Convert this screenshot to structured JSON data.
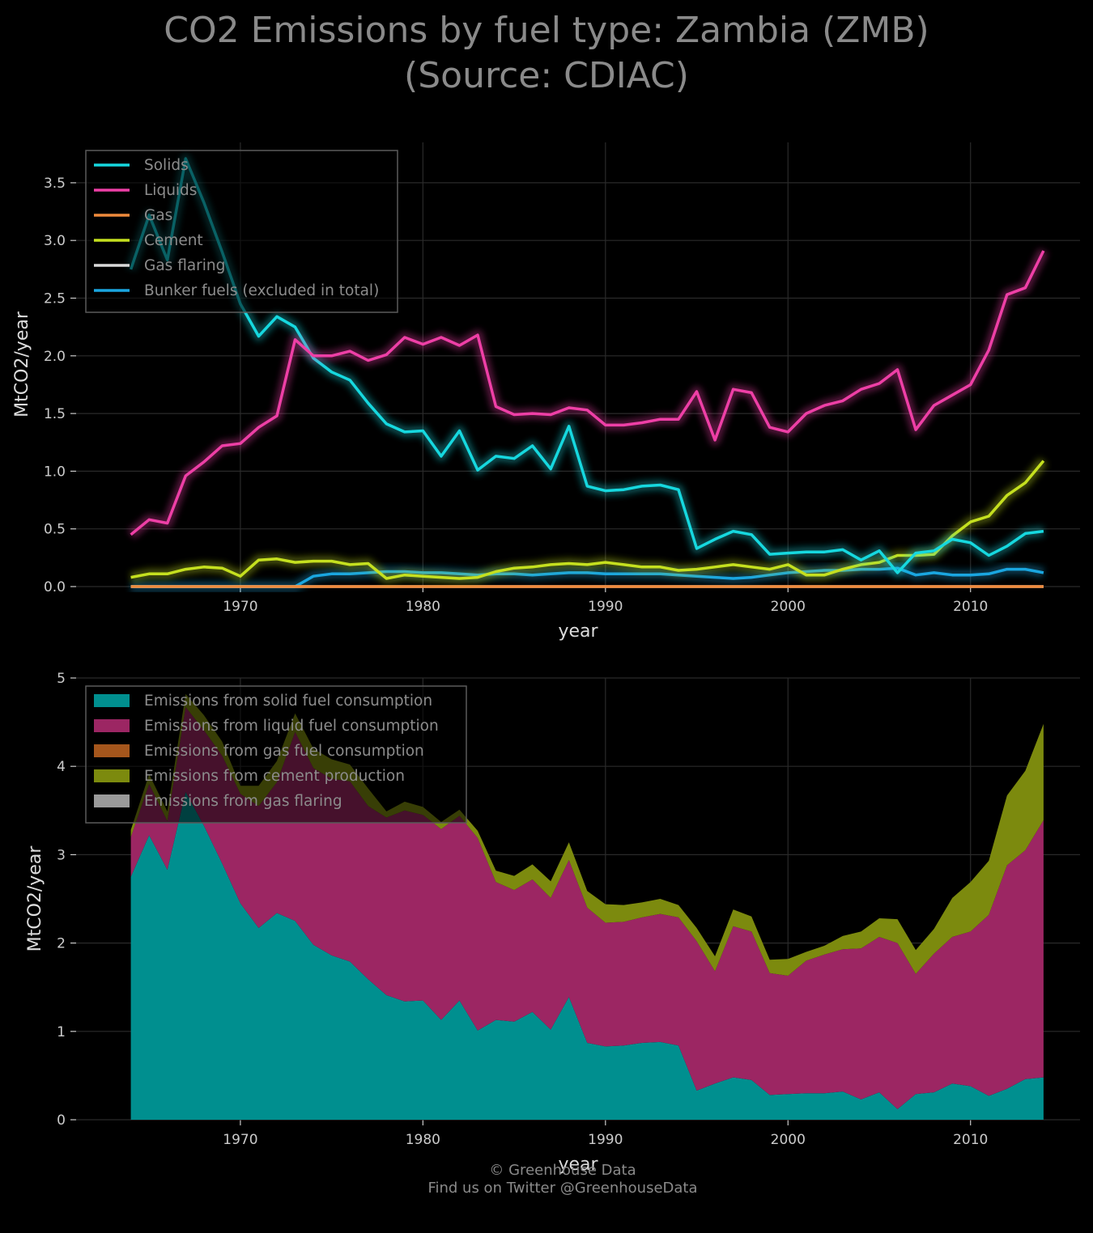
{
  "title": {
    "line1": "CO2 Emissions by fuel type: Zambia (ZMB)",
    "line2": "(Source: CDIAC)"
  },
  "footer": {
    "line1": "© Greenhouse Data",
    "line2": "Find us on Twitter @GreenhouseData"
  },
  "colors": {
    "background": "#000000",
    "grid": "#2a2a2a",
    "axis_text": "#cccccc",
    "legend_text": "#8c8c8c",
    "solids": "#16d8df",
    "liquids": "#ee3fa6",
    "gas": "#ef8a3c",
    "cement": "#c5e01f",
    "flaring": "#d9d9d9",
    "bunker": "#1aa6e0",
    "area_solid": "#008f8f",
    "area_liquid": "#9c2663",
    "area_gas": "#a5561c",
    "area_cement": "#7c8a0e",
    "area_flaring": "#9a9a9a"
  },
  "chart_data": [
    {
      "type": "line",
      "xlabel": "year",
      "ylabel": "MtCO2/year",
      "xlim": [
        1961,
        2016
      ],
      "ylim": [
        0,
        3.85
      ],
      "xticks": [
        1970,
        1980,
        1990,
        2000,
        2010
      ],
      "yticks": [
        0.0,
        0.5,
        1.0,
        1.5,
        2.0,
        2.5,
        3.0,
        3.5
      ],
      "ytick_labels": [
        "0.0",
        "0.5",
        "1.0",
        "1.5",
        "2.0",
        "2.5",
        "3.0",
        "3.5"
      ],
      "grid": true,
      "legend_position": "top-left",
      "x": [
        1964,
        1965,
        1966,
        1967,
        1968,
        1969,
        1970,
        1971,
        1972,
        1973,
        1974,
        1975,
        1976,
        1977,
        1978,
        1979,
        1980,
        1981,
        1982,
        1983,
        1984,
        1985,
        1986,
        1987,
        1988,
        1989,
        1990,
        1991,
        1992,
        1993,
        1994,
        1995,
        1996,
        1997,
        1998,
        1999,
        2000,
        2001,
        2002,
        2003,
        2004,
        2005,
        2006,
        2007,
        2008,
        2009,
        2010,
        2011,
        2012,
        2013,
        2014
      ],
      "series": [
        {
          "name": "Solids",
          "key": "solids",
          "values": [
            2.75,
            3.22,
            2.83,
            3.71,
            3.33,
            2.9,
            2.45,
            2.17,
            2.34,
            2.25,
            1.98,
            1.86,
            1.79,
            1.59,
            1.41,
            1.34,
            1.35,
            1.13,
            1.35,
            1.01,
            1.13,
            1.11,
            1.22,
            1.02,
            1.39,
            0.87,
            0.83,
            0.84,
            0.87,
            0.88,
            0.84,
            0.33,
            0.41,
            0.48,
            0.45,
            0.28,
            0.29,
            0.3,
            0.3,
            0.32,
            0.23,
            0.31,
            0.12,
            0.29,
            0.31,
            0.41,
            0.38,
            0.27,
            0.35,
            0.46,
            0.48
          ]
        },
        {
          "name": "Liquids",
          "key": "liquids",
          "values": [
            0.45,
            0.58,
            0.55,
            0.96,
            1.08,
            1.22,
            1.24,
            1.38,
            1.48,
            2.14,
            2.0,
            2.0,
            2.04,
            1.96,
            2.01,
            2.16,
            2.1,
            2.16,
            2.09,
            2.18,
            1.56,
            1.49,
            1.5,
            1.49,
            1.55,
            1.53,
            1.4,
            1.4,
            1.42,
            1.45,
            1.45,
            1.69,
            1.27,
            1.71,
            1.68,
            1.38,
            1.34,
            1.5,
            1.57,
            1.61,
            1.71,
            1.76,
            1.88,
            1.36,
            1.57,
            1.66,
            1.75,
            2.05,
            2.53,
            2.59,
            2.91
          ]
        },
        {
          "name": "Gas",
          "key": "gas",
          "values": [
            0,
            0,
            0,
            0,
            0,
            0,
            0,
            0,
            0,
            0,
            0,
            0,
            0,
            0,
            0,
            0,
            0,
            0,
            0,
            0,
            0,
            0,
            0,
            0,
            0,
            0,
            0,
            0,
            0,
            0,
            0,
            0,
            0,
            0,
            0,
            0,
            0,
            0,
            0,
            0,
            0,
            0,
            0,
            0,
            0,
            0,
            0,
            0,
            0,
            0,
            0
          ]
        },
        {
          "name": "Cement",
          "key": "cement",
          "values": [
            0.08,
            0.11,
            0.11,
            0.15,
            0.17,
            0.16,
            0.09,
            0.23,
            0.24,
            0.21,
            0.22,
            0.22,
            0.19,
            0.2,
            0.07,
            0.1,
            0.09,
            0.08,
            0.07,
            0.08,
            0.13,
            0.16,
            0.17,
            0.19,
            0.2,
            0.19,
            0.21,
            0.19,
            0.17,
            0.17,
            0.14,
            0.15,
            0.17,
            0.19,
            0.17,
            0.15,
            0.19,
            0.1,
            0.1,
            0.15,
            0.19,
            0.21,
            0.27,
            0.27,
            0.28,
            0.44,
            0.56,
            0.61,
            0.79,
            0.9,
            1.09
          ]
        },
        {
          "name": "Gas flaring",
          "key": "flaring",
          "values": [
            0,
            0,
            0,
            0,
            0,
            0,
            0,
            0,
            0,
            0,
            0,
            0,
            0,
            0,
            0,
            0,
            0,
            0,
            0,
            0,
            0,
            0,
            0,
            0,
            0,
            0,
            0,
            0,
            0,
            0,
            0,
            0,
            0,
            0,
            0,
            0,
            0,
            0,
            0,
            0,
            0,
            0,
            0,
            0,
            0,
            0,
            0,
            0,
            0,
            0,
            0
          ]
        },
        {
          "name": "Bunker fuels (excluded in total)",
          "key": "bunker",
          "values": [
            0,
            0,
            0,
            0,
            0,
            0,
            0,
            0,
            0,
            0,
            0.09,
            0.11,
            0.11,
            0.12,
            0.13,
            0.13,
            0.12,
            0.12,
            0.11,
            0.1,
            0.11,
            0.11,
            0.1,
            0.11,
            0.12,
            0.12,
            0.11,
            0.11,
            0.11,
            0.11,
            0.1,
            0.09,
            0.08,
            0.07,
            0.08,
            0.1,
            0.12,
            0.13,
            0.14,
            0.14,
            0.15,
            0.15,
            0.16,
            0.1,
            0.12,
            0.1,
            0.1,
            0.11,
            0.15,
            0.15,
            0.12
          ]
        }
      ]
    },
    {
      "type": "area",
      "stacked": true,
      "xlabel": "year",
      "ylabel": "MtCO2/year",
      "xlim": [
        1961,
        2016
      ],
      "ylim": [
        0,
        5
      ],
      "xticks": [
        1970,
        1980,
        1990,
        2000,
        2010
      ],
      "yticks": [
        0,
        1,
        2,
        3,
        4,
        5
      ],
      "ytick_labels": [
        "0",
        "1",
        "2",
        "3",
        "4",
        "5"
      ],
      "grid": true,
      "legend_position": "top-left",
      "series": [
        {
          "name": "Emissions from solid fuel consumption",
          "key": "area_solid",
          "source": "solids"
        },
        {
          "name": "Emissions from liquid fuel consumption",
          "key": "area_liquid",
          "source": "liquids"
        },
        {
          "name": "Emissions from gas fuel consumption",
          "key": "area_gas",
          "source": "gas"
        },
        {
          "name": "Emissions from cement production",
          "key": "area_cement",
          "source": "cement"
        },
        {
          "name": "Emissions from gas flaring",
          "key": "area_flaring",
          "source": "flaring"
        }
      ]
    }
  ]
}
